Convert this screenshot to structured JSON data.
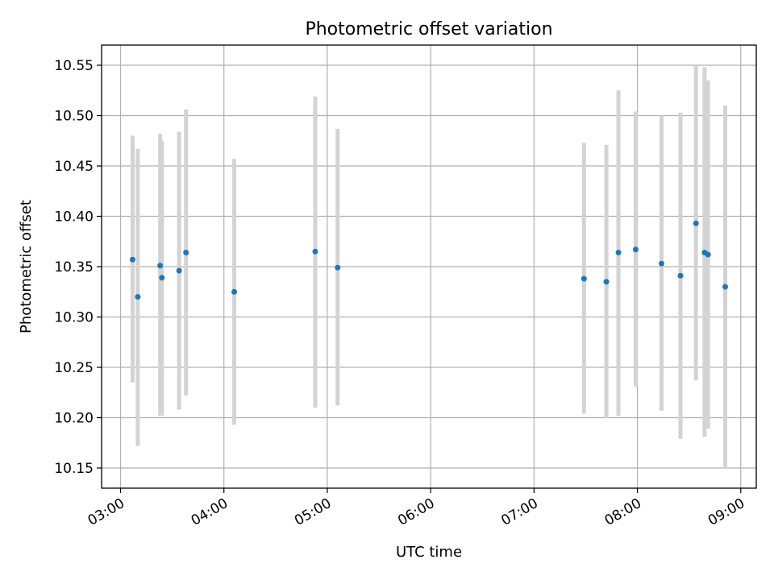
{
  "chart_data": {
    "type": "scatter",
    "title": "Photometric offset variation",
    "xlabel": "UTC time",
    "ylabel": "Photometric offset",
    "xlim": [
      "02:49",
      "09:09"
    ],
    "ylim": [
      10.13,
      10.57
    ],
    "x_ticks": [
      "03:00",
      "04:00",
      "05:00",
      "06:00",
      "07:00",
      "08:00",
      "09:00"
    ],
    "y_ticks": [
      "10.15",
      "10.20",
      "10.25",
      "10.30",
      "10.35",
      "10.40",
      "10.45",
      "10.50",
      "10.55"
    ],
    "grid": true,
    "point_color": "#1f77b4",
    "errorbar_color": "#d3d3d3",
    "points": [
      {
        "x": "03:07",
        "y": 10.357,
        "ylow": 10.235,
        "yhigh": 10.48
      },
      {
        "x": "03:10",
        "y": 10.32,
        "ylow": 10.172,
        "yhigh": 10.467
      },
      {
        "x": "03:23",
        "y": 10.351,
        "ylow": 10.202,
        "yhigh": 10.482
      },
      {
        "x": "03:24",
        "y": 10.339,
        "ylow": 10.202,
        "yhigh": 10.475
      },
      {
        "x": "03:34",
        "y": 10.346,
        "ylow": 10.208,
        "yhigh": 10.484
      },
      {
        "x": "03:38",
        "y": 10.364,
        "ylow": 10.222,
        "yhigh": 10.506
      },
      {
        "x": "04:06",
        "y": 10.325,
        "ylow": 10.193,
        "yhigh": 10.457
      },
      {
        "x": "04:53",
        "y": 10.365,
        "ylow": 10.21,
        "yhigh": 10.519
      },
      {
        "x": "05:06",
        "y": 10.349,
        "ylow": 10.212,
        "yhigh": 10.487
      },
      {
        "x": "07:29",
        "y": 10.338,
        "ylow": 10.204,
        "yhigh": 10.473
      },
      {
        "x": "07:42",
        "y": 10.335,
        "ylow": 10.2,
        "yhigh": 10.471
      },
      {
        "x": "07:49",
        "y": 10.364,
        "ylow": 10.202,
        "yhigh": 10.525
      },
      {
        "x": "07:59",
        "y": 10.367,
        "ylow": 10.231,
        "yhigh": 10.504
      },
      {
        "x": "08:14",
        "y": 10.353,
        "ylow": 10.207,
        "yhigh": 10.5
      },
      {
        "x": "08:25",
        "y": 10.341,
        "ylow": 10.179,
        "yhigh": 10.503
      },
      {
        "x": "08:34",
        "y": 10.393,
        "ylow": 10.237,
        "yhigh": 10.55
      },
      {
        "x": "08:39",
        "y": 10.364,
        "ylow": 10.181,
        "yhigh": 10.548
      },
      {
        "x": "08:41",
        "y": 10.362,
        "ylow": 10.189,
        "yhigh": 10.535
      },
      {
        "x": "08:51",
        "y": 10.33,
        "ylow": 10.15,
        "yhigh": 10.51
      }
    ]
  }
}
